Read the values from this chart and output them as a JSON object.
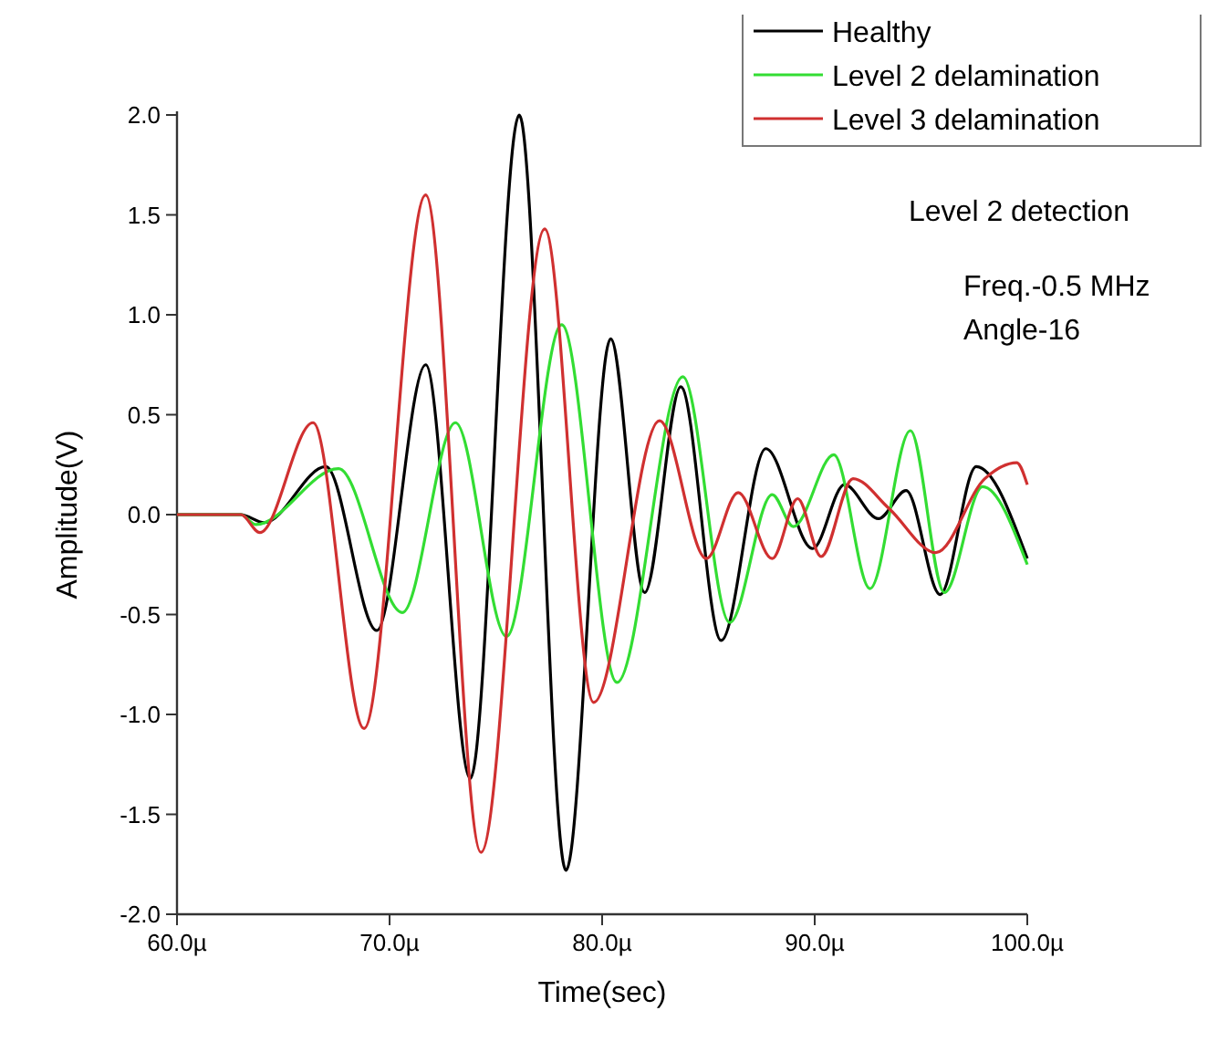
{
  "chart_data": {
    "type": "line",
    "xlabel": "Time(sec)",
    "ylabel": "Amplitude(V)",
    "xlim": [
      60,
      100
    ],
    "xticks": [
      {
        "value": 60,
        "label": "60.0µ"
      },
      {
        "value": 70,
        "label": "70.0µ"
      },
      {
        "value": 80,
        "label": "80.0µ"
      },
      {
        "value": 90,
        "label": "90.0µ"
      },
      {
        "value": 100,
        "label": "100.0µ"
      }
    ],
    "ylim": [
      -2,
      2
    ],
    "yticks": [
      {
        "value": -2,
        "label": "-2.0"
      },
      {
        "value": -1.5,
        "label": "-1.5"
      },
      {
        "value": -1,
        "label": "-1.0"
      },
      {
        "value": -0.5,
        "label": "-0.5"
      },
      {
        "value": 0,
        "label": "0.0"
      },
      {
        "value": 0.5,
        "label": "0.5"
      },
      {
        "value": 1,
        "label": "1.0"
      },
      {
        "value": 1.5,
        "label": "1.5"
      },
      {
        "value": 2,
        "label": "2.0"
      }
    ],
    "grid": false,
    "legend": "top right",
    "marker": "none",
    "line_style": "solid",
    "annotations": [
      "Level 2 detection",
      "Freq.-0.5 MHz",
      "Angle-16"
    ],
    "series": [
      {
        "name": "Healthy",
        "color": "#000000",
        "x": [
          60,
          63,
          64.1,
          67.0,
          69.4,
          71.7,
          73.8,
          76.1,
          78.3,
          80.4,
          82.0,
          83.7,
          85.6,
          87.7,
          89.9,
          91.4,
          93.0,
          94.3,
          95.9,
          97.6,
          100
        ],
        "values": [
          0,
          0,
          -0.04,
          0.24,
          -0.58,
          0.75,
          -1.32,
          2.0,
          -1.78,
          0.88,
          -0.39,
          0.64,
          -0.63,
          0.33,
          -0.17,
          0.15,
          -0.02,
          0.12,
          -0.4,
          0.24,
          -0.22
        ]
      },
      {
        "name": "Level 2 delamination",
        "color": "#33dd33",
        "x": [
          60,
          63,
          63.7,
          67.6,
          70.6,
          73.1,
          75.5,
          78.1,
          80.7,
          83.8,
          86.0,
          88.0,
          89.0,
          90.9,
          92.6,
          94.5,
          96.1,
          97.9,
          100
        ],
        "values": [
          0,
          0,
          -0.05,
          0.23,
          -0.49,
          0.46,
          -0.61,
          0.95,
          -0.84,
          0.69,
          -0.54,
          0.1,
          -0.06,
          0.3,
          -0.37,
          0.42,
          -0.39,
          0.14,
          -0.25
        ]
      },
      {
        "name": "Level 3 delamination",
        "color": "#d03030",
        "x": [
          60,
          63,
          63.9,
          66.4,
          68.8,
          71.7,
          74.3,
          77.3,
          79.6,
          82.7,
          84.9,
          86.4,
          88.0,
          89.2,
          90.3,
          91.8,
          93.5,
          95.7,
          98.0,
          99.5,
          100
        ],
        "values": [
          0,
          0,
          -0.09,
          0.46,
          -1.07,
          1.6,
          -1.69,
          1.43,
          -0.94,
          0.47,
          -0.22,
          0.11,
          -0.22,
          0.08,
          -0.21,
          0.18,
          0.03,
          -0.19,
          0.18,
          0.26,
          0.15
        ]
      }
    ]
  }
}
